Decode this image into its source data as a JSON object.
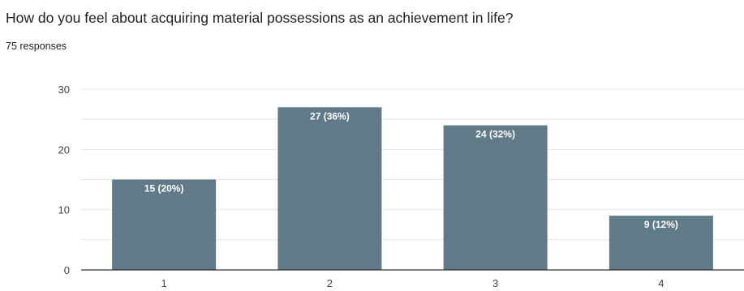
{
  "question": {
    "title": "How do you feel about acquiring material possessions as an achievement in life?",
    "responses_text": "75 responses"
  },
  "colors": {
    "bar": "#607b87",
    "bar_label": "#ffffff",
    "gridline": "#e4e4e4",
    "axis_line": "#333333",
    "tick_text": "#444444"
  },
  "chart_data": {
    "type": "bar",
    "title": "",
    "xlabel": "",
    "ylabel": "",
    "categories": [
      "1",
      "2",
      "3",
      "4"
    ],
    "values": [
      15,
      27,
      24,
      9
    ],
    "data_labels": [
      "15 (20%)",
      "27 (36%)",
      "24 (32%)",
      "9 (12%)"
    ],
    "y_ticks": [
      0,
      10,
      20,
      30
    ],
    "ylim": [
      0,
      30
    ],
    "grid": true
  }
}
